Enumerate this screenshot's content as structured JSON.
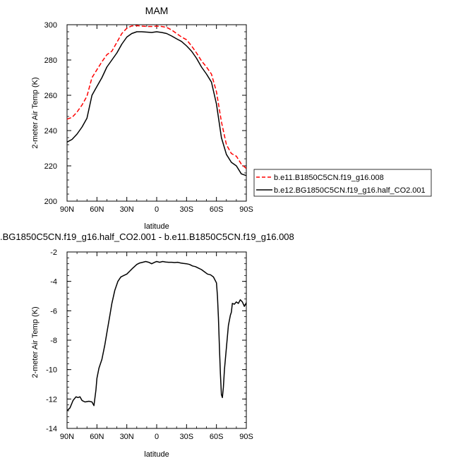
{
  "chart_data": [
    {
      "type": "line",
      "title": "MAM",
      "xlabel": "latitude",
      "ylabel": "2-meter Air Temp (K)",
      "x_ticks": [
        {
          "value": 90,
          "label": "90N"
        },
        {
          "value": 60,
          "label": "60N"
        },
        {
          "value": 30,
          "label": "30N"
        },
        {
          "value": 0,
          "label": "0"
        },
        {
          "value": -30,
          "label": "30S"
        },
        {
          "value": -60,
          "label": "60S"
        },
        {
          "value": -90,
          "label": "90S"
        }
      ],
      "xlim": [
        90,
        -90
      ],
      "ylim": [
        200,
        300
      ],
      "y_ticks": [
        200,
        220,
        240,
        260,
        280,
        300
      ],
      "grid": false,
      "legend": "right-outside",
      "series": [
        {
          "name": "b.e11.B1850C5CN.f19_g16.008",
          "color": "#ff0000",
          "dash": "dashed",
          "x": [
            90,
            85,
            80,
            75,
            70,
            65,
            60,
            55,
            50,
            45,
            40,
            35,
            30,
            25,
            20,
            15,
            10,
            5,
            0,
            -5,
            -10,
            -15,
            -20,
            -25,
            -30,
            -35,
            -40,
            -45,
            -50,
            -55,
            -60,
            -65,
            -70,
            -75,
            -80,
            -85,
            -90
          ],
          "y": [
            246.5,
            247.5,
            250.5,
            254.5,
            259.5,
            270,
            274.5,
            279,
            283,
            285,
            290,
            295,
            298,
            299.3,
            299.5,
            299.2,
            299,
            299,
            299.2,
            299,
            298.5,
            297,
            295,
            293,
            291.5,
            288,
            284,
            279.5,
            276,
            272,
            262,
            245,
            232,
            227,
            225.5,
            221,
            218.5
          ]
        },
        {
          "name": "b.e12.BG1850C5CN.f19_g16.half_CO2.001",
          "color": "#000000",
          "dash": "solid",
          "x": [
            90,
            85,
            80,
            75,
            70,
            65,
            60,
            55,
            50,
            45,
            40,
            35,
            30,
            25,
            20,
            15,
            10,
            5,
            0,
            -5,
            -10,
            -15,
            -20,
            -25,
            -30,
            -35,
            -40,
            -45,
            -50,
            -55,
            -60,
            -65,
            -70,
            -75,
            -80,
            -85,
            -90
          ],
          "y": [
            233.5,
            235,
            238,
            242,
            247,
            260,
            265,
            270,
            276,
            280,
            284,
            289,
            293,
            295,
            296,
            296,
            295.8,
            295.6,
            296,
            295.6,
            295,
            293.6,
            292,
            290.5,
            288,
            285,
            281,
            276,
            272,
            267.5,
            255,
            236,
            226.5,
            222,
            220,
            215.5,
            214.5
          ]
        }
      ]
    },
    {
      "type": "line",
      "title": ".BG1850C5CN.f19_g16.half_CO2.001 - b.e11.B1850C5CN.f19_g16.008",
      "xlabel": "latitude",
      "ylabel": "2-meter Air Temp (K)",
      "x_ticks": [
        {
          "value": 90,
          "label": "90N"
        },
        {
          "value": 60,
          "label": "60N"
        },
        {
          "value": 30,
          "label": "30N"
        },
        {
          "value": 0,
          "label": "0"
        },
        {
          "value": -30,
          "label": "30S"
        },
        {
          "value": -60,
          "label": "60S"
        },
        {
          "value": -90,
          "label": "90S"
        }
      ],
      "xlim": [
        90,
        -90
      ],
      "ylim": [
        -14,
        -2
      ],
      "y_ticks": [
        -14,
        -12,
        -10,
        -8,
        -6,
        -4,
        -2
      ],
      "grid": false,
      "series": [
        {
          "color": "#000000",
          "dash": "solid",
          "x": [
            90,
            87,
            84,
            81,
            79,
            77,
            75,
            72,
            68,
            65,
            63,
            61,
            60,
            58,
            55,
            52,
            50,
            47,
            45,
            42,
            39,
            36,
            33,
            30,
            27,
            24,
            20,
            17,
            14,
            11,
            8,
            5,
            2,
            0,
            -3,
            -6,
            -9,
            -12,
            -15,
            -18,
            -21,
            -24,
            -27,
            -30,
            -33,
            -36,
            -39,
            -42,
            -45,
            -48,
            -51,
            -54,
            -57,
            -60,
            -61,
            -62,
            -63,
            -64,
            -65,
            -66,
            -67,
            -68,
            -70,
            -72,
            -74,
            -75,
            -76,
            -78,
            -80,
            -82,
            -84,
            -86,
            -88,
            -90
          ],
          "y": [
            -12.8,
            -12.6,
            -12.1,
            -11.85,
            -11.9,
            -11.85,
            -12.1,
            -12.2,
            -12.15,
            -12.2,
            -12.45,
            -11.4,
            -10.6,
            -9.9,
            -9.3,
            -8.3,
            -7.5,
            -6.3,
            -5.5,
            -4.6,
            -4.0,
            -3.7,
            -3.6,
            -3.5,
            -3.3,
            -3.1,
            -2.85,
            -2.75,
            -2.7,
            -2.65,
            -2.7,
            -2.8,
            -2.7,
            -2.65,
            -2.7,
            -2.65,
            -2.68,
            -2.7,
            -2.7,
            -2.72,
            -2.7,
            -2.75,
            -2.78,
            -2.8,
            -2.85,
            -2.95,
            -3.0,
            -3.1,
            -3.2,
            -3.35,
            -3.5,
            -3.55,
            -3.7,
            -4.1,
            -5.0,
            -6.5,
            -8.5,
            -10.3,
            -11.7,
            -11.9,
            -11.2,
            -10.0,
            -8.5,
            -7.0,
            -6.3,
            -6.1,
            -5.5,
            -5.55,
            -5.4,
            -5.5,
            -5.25,
            -5.4,
            -5.7,
            -5.45
          ]
        }
      ]
    }
  ]
}
